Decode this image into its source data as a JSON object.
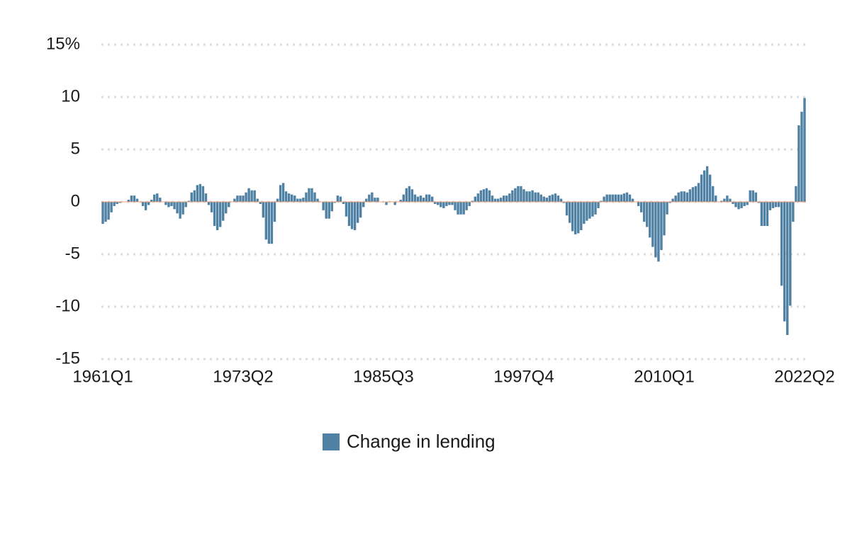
{
  "chart_data": {
    "type": "bar",
    "categories": [
      "1961Q1",
      null,
      null,
      null,
      null,
      null,
      null,
      null,
      null,
      null,
      null,
      null,
      null,
      null,
      null,
      null,
      null,
      null,
      null,
      null,
      null,
      null,
      null,
      null,
      null,
      null,
      null,
      null,
      null,
      null,
      null,
      null,
      null,
      null,
      null,
      null,
      null,
      null,
      null,
      null,
      null,
      null,
      null,
      null,
      null,
      null,
      null,
      null,
      null,
      "1973Q2",
      null,
      null,
      null,
      null,
      null,
      null,
      null,
      null,
      null,
      null,
      null,
      null,
      null,
      null,
      null,
      null,
      null,
      null,
      null,
      null,
      null,
      null,
      null,
      null,
      null,
      null,
      null,
      null,
      null,
      null,
      null,
      null,
      null,
      null,
      null,
      null,
      null,
      null,
      null,
      null,
      null,
      null,
      null,
      null,
      null,
      null,
      null,
      null,
      "1985Q3",
      null,
      null,
      null,
      null,
      null,
      null,
      null,
      null,
      null,
      null,
      null,
      null,
      null,
      null,
      null,
      null,
      null,
      null,
      null,
      null,
      null,
      null,
      null,
      null,
      null,
      null,
      null,
      null,
      null,
      null,
      null,
      null,
      null,
      null,
      null,
      null,
      null,
      null,
      null,
      null,
      null,
      null,
      null,
      null,
      null,
      null,
      null,
      null,
      "1997Q4",
      null,
      null,
      null,
      null,
      null,
      null,
      null,
      null,
      null,
      null,
      null,
      null,
      null,
      null,
      null,
      null,
      null,
      null,
      null,
      null,
      null,
      null,
      null,
      null,
      null,
      null,
      null,
      null,
      null,
      null,
      null,
      null,
      null,
      null,
      null,
      null,
      null,
      null,
      null,
      null,
      null,
      null,
      null,
      null,
      null,
      null,
      null,
      null,
      "2010Q1",
      null,
      null,
      null,
      null,
      null,
      null,
      null,
      null,
      null,
      null,
      null,
      null,
      null,
      null,
      null,
      null,
      null,
      null,
      null,
      null,
      null,
      null,
      null,
      null,
      null,
      null,
      null,
      null,
      null,
      null,
      null,
      null,
      null,
      null,
      null,
      null,
      null,
      null,
      null,
      null,
      null,
      null,
      null,
      null,
      null,
      null,
      null,
      null,
      "2022Q2"
    ],
    "series": [
      {
        "name": "Change in lending",
        "color": "#4e81a3",
        "values": [
          -2.1,
          -1.9,
          -1.7,
          -1.0,
          -0.4,
          -0.2,
          -0.1,
          0,
          0,
          0.2,
          0.6,
          0.6,
          0.3,
          0,
          -0.4,
          -0.8,
          -0.3,
          0.2,
          0.7,
          0.8,
          0.4,
          0,
          -0.3,
          -0.5,
          -0.4,
          -0.7,
          -1.1,
          -1.6,
          -1.2,
          -0.5,
          0.1,
          0.9,
          1.1,
          1.6,
          1.7,
          1.5,
          0.8,
          -0.3,
          -1.0,
          -2.3,
          -2.7,
          -2.4,
          -1.8,
          -1.1,
          -0.5,
          0,
          0.3,
          0.6,
          0.6,
          0.6,
          0.9,
          1.3,
          1.1,
          1.1,
          0.3,
          -0.2,
          -1.5,
          -3.6,
          -4.0,
          -4.0,
          -1.9,
          0.3,
          1.6,
          1.8,
          1.0,
          0.8,
          0.7,
          0.6,
          0.3,
          0.3,
          0.4,
          0.9,
          1.3,
          1.3,
          0.9,
          0.3,
          0,
          -0.8,
          -1.6,
          -1.6,
          -0.9,
          -0.1,
          0.6,
          0.5,
          -0.2,
          -1.4,
          -2.3,
          -2.6,
          -2.7,
          -2.0,
          -1.5,
          -0.5,
          0.3,
          0.7,
          0.9,
          0.4,
          0.4,
          0,
          0,
          -0.3,
          0,
          0,
          -0.3,
          0,
          0.2,
          0.7,
          1.3,
          1.5,
          1.2,
          0.7,
          0.5,
          0.6,
          0.4,
          0.7,
          0.7,
          0.5,
          -0.2,
          -0.3,
          -0.5,
          -0.6,
          -0.4,
          -0.3,
          -0.3,
          -0.8,
          -1.2,
          -1.2,
          -1.2,
          -0.8,
          -0.4,
          0.1,
          0.5,
          0.8,
          1.1,
          1.2,
          1.3,
          1.1,
          0.6,
          0.3,
          0.3,
          0.4,
          0.6,
          0.6,
          0.8,
          1.1,
          1.3,
          1.5,
          1.5,
          1.2,
          1.0,
          1.0,
          1.1,
          0.9,
          0.9,
          0.7,
          0.5,
          0.4,
          0.6,
          0.7,
          0.8,
          0.6,
          0.3,
          -0.1,
          -1.3,
          -2.0,
          -2.8,
          -3.1,
          -3.0,
          -2.7,
          -2.1,
          -1.8,
          -1.6,
          -1.4,
          -1.2,
          -0.6,
          0.1,
          0.5,
          0.7,
          0.7,
          0.7,
          0.7,
          0.7,
          0.7,
          0.8,
          0.9,
          0.7,
          0.3,
          0,
          -0.4,
          -1.0,
          -1.9,
          -2.4,
          -3.4,
          -4.3,
          -5.3,
          -5.7,
          -4.6,
          -3.2,
          -1.2,
          -0.1,
          0.3,
          0.6,
          0.9,
          1.0,
          1.0,
          0.9,
          1.2,
          1.4,
          1.5,
          1.8,
          2.6,
          3.0,
          3.4,
          2.6,
          1.5,
          0.6,
          0,
          0.1,
          0.3,
          0.6,
          0.3,
          -0.2,
          -0.5,
          -0.7,
          -0.6,
          -0.4,
          -0.3,
          1.1,
          1.1,
          0.9,
          -0.1,
          -2.3,
          -2.3,
          -2.3,
          -0.8,
          -0.6,
          -0.5,
          -0.5,
          -8.0,
          -11.4,
          -12.7,
          -9.9,
          -1.9,
          1.5,
          7.3,
          8.6,
          9.9
        ]
      }
    ],
    "ylim": [
      -15,
      15
    ],
    "yticks": [
      -15,
      -10,
      -5,
      0,
      5,
      {
        "value": 10,
        "label": "10"
      },
      {
        "value": 15,
        "label": "15%"
      }
    ],
    "grid": true
  }
}
